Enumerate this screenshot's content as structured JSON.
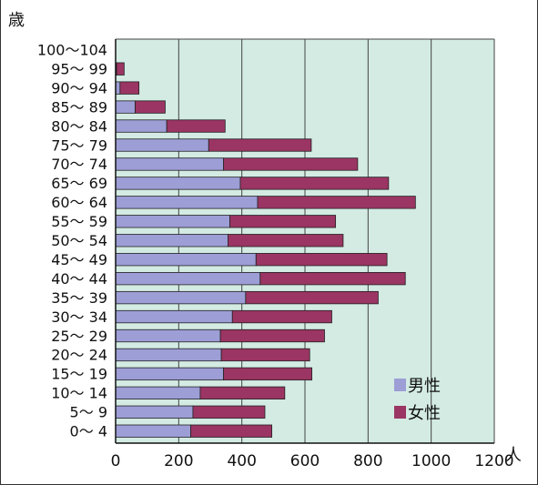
{
  "chart_data": {
    "type": "bar",
    "orientation": "horizontal",
    "stacked": true,
    "y_unit": "歳",
    "x_unit": "人",
    "categories": [
      "0〜 4",
      "5〜 9",
      "10〜 14",
      "15〜 19",
      "20〜 24",
      "25〜 29",
      "30〜 34",
      "35〜 39",
      "40〜 44",
      "45〜 49",
      "50〜 54",
      "55〜 59",
      "60〜 64",
      "65〜 69",
      "70〜 74",
      "75〜 79",
      "80〜 84",
      "85〜 89",
      "90〜 94",
      "95〜 99",
      "100〜104"
    ],
    "series": [
      {
        "name": "男性",
        "color": "#9d9ed6",
        "values": [
          238,
          245,
          268,
          342,
          335,
          332,
          370,
          412,
          458,
          445,
          356,
          362,
          450,
          395,
          342,
          295,
          162,
          62,
          14,
          3,
          0
        ]
      },
      {
        "name": "女性",
        "color": "#9b3563",
        "values": [
          257,
          228,
          268,
          280,
          280,
          330,
          315,
          420,
          460,
          415,
          365,
          335,
          500,
          470,
          425,
          325,
          185,
          95,
          60,
          24,
          0
        ]
      }
    ],
    "xlim": [
      0,
      1200
    ],
    "xticks": [
      "0",
      "200",
      "400",
      "600",
      "800",
      "1000",
      "1200"
    ],
    "grid": true,
    "legend_position": "bottom-right",
    "plot_background": "#d3ebe3"
  }
}
